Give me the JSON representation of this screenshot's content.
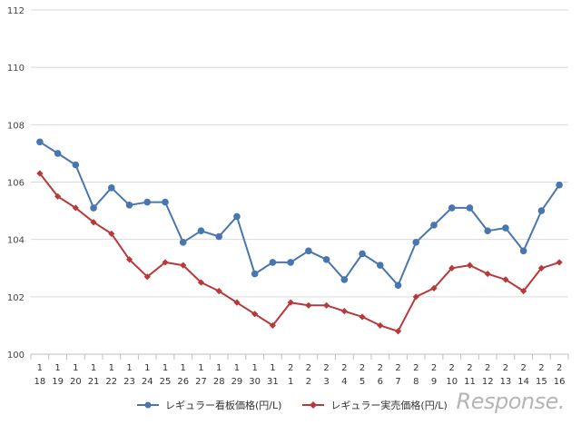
{
  "chart_data": {
    "type": "line",
    "title": "",
    "xlabel": "",
    "ylabel": "",
    "ylim": [
      100,
      112
    ],
    "yticks": [
      100,
      102,
      104,
      106,
      108,
      110,
      112
    ],
    "grid": true,
    "legend_position": "bottom",
    "categories": [
      {
        "month": "1",
        "day": "18"
      },
      {
        "month": "1",
        "day": "19"
      },
      {
        "month": "1",
        "day": "20"
      },
      {
        "month": "1",
        "day": "21"
      },
      {
        "month": "1",
        "day": "22"
      },
      {
        "month": "1",
        "day": "23"
      },
      {
        "month": "1",
        "day": "24"
      },
      {
        "month": "1",
        "day": "25"
      },
      {
        "month": "1",
        "day": "26"
      },
      {
        "month": "1",
        "day": "27"
      },
      {
        "month": "1",
        "day": "28"
      },
      {
        "month": "1",
        "day": "29"
      },
      {
        "month": "1",
        "day": "30"
      },
      {
        "month": "1",
        "day": "31"
      },
      {
        "month": "2",
        "day": "1"
      },
      {
        "month": "2",
        "day": "2"
      },
      {
        "month": "2",
        "day": "3"
      },
      {
        "month": "2",
        "day": "4"
      },
      {
        "month": "2",
        "day": "5"
      },
      {
        "month": "2",
        "day": "6"
      },
      {
        "month": "2",
        "day": "7"
      },
      {
        "month": "2",
        "day": "8"
      },
      {
        "month": "2",
        "day": "9"
      },
      {
        "month": "2",
        "day": "10"
      },
      {
        "month": "2",
        "day": "11"
      },
      {
        "month": "2",
        "day": "12"
      },
      {
        "month": "2",
        "day": "13"
      },
      {
        "month": "2",
        "day": "14"
      },
      {
        "month": "2",
        "day": "15"
      },
      {
        "month": "2",
        "day": "16"
      }
    ],
    "series": [
      {
        "name": "レギュラー看板価格(円/L)",
        "color": "#4a76b0",
        "marker": "circle",
        "values": [
          107.4,
          107.0,
          106.6,
          105.1,
          105.8,
          105.2,
          105.3,
          105.3,
          103.9,
          104.3,
          104.1,
          104.8,
          102.8,
          103.2,
          103.2,
          103.6,
          103.3,
          102.6,
          103.5,
          103.1,
          102.4,
          103.9,
          104.5,
          105.1,
          105.1,
          104.3,
          104.4,
          103.6,
          105.0,
          105.9
        ]
      },
      {
        "name": "レギュラー実売価格(円/L)",
        "color": "#b8393a",
        "marker": "diamond",
        "values": [
          106.3,
          105.5,
          105.1,
          104.6,
          104.2,
          103.3,
          102.7,
          103.2,
          103.1,
          102.5,
          102.2,
          101.8,
          101.4,
          101.0,
          101.8,
          101.7,
          101.7,
          101.5,
          101.3,
          101.0,
          100.8,
          102.0,
          102.3,
          103.0,
          103.1,
          102.8,
          102.6,
          102.2,
          103.0,
          103.2
        ]
      }
    ]
  },
  "brand": {
    "text": "Response."
  }
}
